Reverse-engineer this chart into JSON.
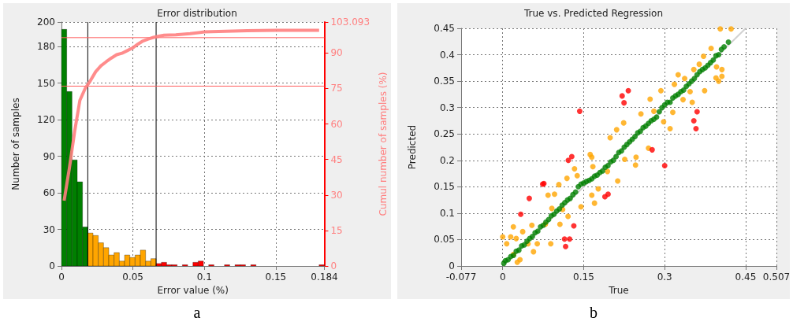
{
  "chart_data": [
    {
      "type": "histogram",
      "title": "Error distribution",
      "xlabel": "Error value (%)",
      "ylabel": "Number of samples",
      "y2label": "Cumul number of samples (%)",
      "bins": [
        0,
        0.00368,
        0.00736,
        0.01104,
        0.01472,
        0.0184,
        0.02208,
        0.02576,
        0.02944,
        0.03312,
        0.0368,
        0.04048,
        0.04416,
        0.04784,
        0.05152,
        0.0552,
        0.05888,
        0.06256,
        0.06624,
        0.06992,
        0.0736,
        0.07728,
        0.08096,
        0.08464,
        0.08832,
        0.092,
        0.09568,
        0.09936,
        0.10304,
        0.10672,
        0.1104,
        0.11408,
        0.11776,
        0.12144,
        0.12512,
        0.1288,
        0.13248,
        0.13616,
        0.13984,
        0.14352,
        0.1472,
        0.15088,
        0.15456,
        0.15824,
        0.16192,
        0.1656,
        0.16928,
        0.17296,
        0.17664,
        0.18032,
        0.184
      ],
      "values": [
        194,
        143,
        87,
        69,
        32,
        27,
        25,
        19,
        15,
        9,
        11,
        4,
        9,
        7,
        9,
        13,
        4,
        6,
        2,
        3,
        1,
        1,
        0,
        1,
        0,
        3,
        4,
        0,
        1,
        0,
        0,
        1,
        0,
        1,
        1,
        0,
        1,
        0,
        0,
        0,
        0,
        0,
        0,
        0,
        0,
        0,
        0,
        0,
        0,
        1
      ],
      "colors": [
        "#007f00",
        "#007f00",
        "#007f00",
        "#007f00",
        "#007f00",
        "#ffa500",
        "#ffa500",
        "#ffa500",
        "#ffa500",
        "#ffa500",
        "#ffa500",
        "#ffa500",
        "#ffa500",
        "#ffa500",
        "#ffa500",
        "#ffa500",
        "#ffa500",
        "#ffa500",
        "#ff0000",
        "#ff0000",
        "#ff0000",
        "#ff0000",
        "#ff0000",
        "#ff0000",
        "#ff0000",
        "#ff0000",
        "#ff0000",
        "#ff0000",
        "#ff0000",
        "#ff0000",
        "#ff0000",
        "#ff0000",
        "#ff0000",
        "#ff0000",
        "#ff0000",
        "#ff0000",
        "#ff0000",
        "#ff0000",
        "#ff0000",
        "#ff0000",
        "#ff0000",
        "#ff0000",
        "#ff0000",
        "#ff0000",
        "#ff0000",
        "#ff0000",
        "#ff0000",
        "#ff0000",
        "#ff0000",
        "#ff0000"
      ],
      "series": [
        {
          "type": "line",
          "axis": "y2",
          "color": "#ff8080",
          "x": [
            0.00184,
            0.00552,
            0.0092,
            0.01288,
            0.01656,
            0.02024,
            0.02392,
            0.0276,
            0.03128,
            0.03496,
            0.03864,
            0.04232,
            0.046,
            0.04968,
            0.05336,
            0.05704,
            0.06072,
            0.0644,
            0.06808,
            0.07176,
            0.07544,
            0.08,
            0.09,
            0.1,
            0.11,
            0.13,
            0.15,
            0.18032
          ],
          "values": [
            27.6,
            41.3,
            56.8,
            70.0,
            75.0,
            78.3,
            82.1,
            84.6,
            86.3,
            87.9,
            89.3,
            89.9,
            91.0,
            92.1,
            93.7,
            95.1,
            95.9,
            96.6,
            97.1,
            97.5,
            97.6,
            97.7,
            98.2,
            98.9,
            99.1,
            99.4,
            99.6,
            99.6
          ]
        }
      ],
      "xlim": [
        0,
        0.184
      ],
      "xticks": [
        0,
        0.05,
        0.1,
        0.15,
        0.184
      ],
      "ylim": [
        0,
        200
      ],
      "yticks": [
        0,
        30,
        60,
        90,
        120,
        150,
        180,
        200
      ],
      "y2lim": [
        0,
        103.093
      ],
      "y2ticks": [
        0,
        15,
        30,
        45,
        60,
        75,
        90,
        103.093
      ],
      "ref_lines": [
        {
          "axis": "x",
          "value": 0.0184,
          "color": "#000000"
        },
        {
          "axis": "x",
          "value": 0.06624,
          "color": "#000000"
        },
        {
          "axis": "y2",
          "value": 76,
          "color": "#ff6060"
        },
        {
          "axis": "y2",
          "value": 96.5,
          "color": "#ff6060"
        }
      ],
      "grid": true,
      "annotations": [
        "a"
      ]
    },
    {
      "type": "scatter",
      "title": "True vs. Predicted Regression",
      "xlabel": "True",
      "ylabel": "Predicted",
      "series": [
        {
          "color": "#ffa500",
          "x": [
            0.0,
            0.0074,
            0.0148,
            0.02,
            0.027,
            0.032,
            0.0197,
            0.025,
            0.037,
            0.047,
            0.054,
            0.057,
            0.064,
            0.079,
            0.084,
            0.089,
            0.091,
            0.096,
            0.104,
            0.106,
            0.111,
            0.119,
            0.121,
            0.133,
            0.138,
            0.145,
            0.162,
            0.165,
            0.165,
            0.167,
            0.177,
            0.17,
            0.194,
            0.213,
            0.199,
            0.211,
            0.224,
            0.226,
            0.246,
            0.247,
            0.256,
            0.27,
            0.273,
            0.28,
            0.293,
            0.298,
            0.31,
            0.318,
            0.315,
            0.325,
            0.337,
            0.334,
            0.347,
            0.351,
            0.374,
            0.354,
            0.364,
            0.372,
            0.386,
            0.396,
            0.406,
            0.395,
            0.406,
            0.4,
            0.403,
            0.423
          ],
          "values": [
            0.055,
            0.042,
            0.055,
            0.022,
            0.007,
            0.012,
            0.074,
            0.052,
            0.065,
            0.042,
            0.077,
            0.027,
            0.042,
            0.079,
            0.134,
            0.042,
            0.109,
            0.136,
            0.154,
            0.079,
            0.107,
            0.166,
            0.094,
            0.184,
            0.171,
            0.112,
            0.211,
            0.134,
            0.206,
            0.188,
            0.146,
            0.119,
            0.179,
            0.161,
            0.243,
            0.258,
            0.271,
            0.202,
            0.191,
            0.206,
            0.288,
            0.223,
            0.316,
            0.293,
            0.332,
            0.273,
            0.26,
            0.344,
            0.291,
            0.362,
            0.355,
            0.315,
            0.33,
            0.31,
            0.332,
            0.372,
            0.382,
            0.397,
            0.412,
            0.377,
            0.372,
            0.356,
            0.359,
            0.35,
            0.449,
            0.449
          ]
        },
        {
          "color": "#008000",
          "x": [
            0.002,
            0.005,
            0.01,
            0.015,
            0.02,
            0.025,
            0.03,
            0.035,
            0.04,
            0.045,
            0.05,
            0.055,
            0.06,
            0.065,
            0.07,
            0.075,
            0.08,
            0.085,
            0.09,
            0.095,
            0.1,
            0.105,
            0.11,
            0.115,
            0.12,
            0.125,
            0.13,
            0.135,
            0.14,
            0.145,
            0.15,
            0.155,
            0.16,
            0.165,
            0.17,
            0.175,
            0.18,
            0.185,
            0.19,
            0.195,
            0.2,
            0.205,
            0.21,
            0.215,
            0.22,
            0.225,
            0.23,
            0.235,
            0.24,
            0.245,
            0.25,
            0.255,
            0.26,
            0.265,
            0.27,
            0.275,
            0.28,
            0.285,
            0.29,
            0.295,
            0.3,
            0.305,
            0.31,
            0.315,
            0.32,
            0.325,
            0.33,
            0.335,
            0.34,
            0.345,
            0.35,
            0.355,
            0.36,
            0.365,
            0.37,
            0.375,
            0.38,
            0.385,
            0.39,
            0.395,
            0.4,
            0.405,
            0.41,
            0.418
          ],
          "values": [
            0.005,
            0.01,
            0.012,
            0.018,
            0.02,
            0.028,
            0.03,
            0.038,
            0.04,
            0.047,
            0.052,
            0.056,
            0.063,
            0.066,
            0.074,
            0.077,
            0.083,
            0.088,
            0.095,
            0.098,
            0.104,
            0.108,
            0.115,
            0.12,
            0.125,
            0.128,
            0.135,
            0.14,
            0.15,
            0.155,
            0.157,
            0.16,
            0.162,
            0.165,
            0.17,
            0.172,
            0.177,
            0.18,
            0.187,
            0.19,
            0.197,
            0.2,
            0.207,
            0.215,
            0.218,
            0.225,
            0.23,
            0.235,
            0.24,
            0.245,
            0.252,
            0.255,
            0.262,
            0.265,
            0.27,
            0.275,
            0.278,
            0.282,
            0.292,
            0.3,
            0.305,
            0.31,
            0.31,
            0.318,
            0.322,
            0.325,
            0.33,
            0.333,
            0.34,
            0.345,
            0.35,
            0.355,
            0.362,
            0.368,
            0.372,
            0.375,
            0.38,
            0.385,
            0.39,
            0.398,
            0.4,
            0.41,
            0.415,
            0.424
          ]
        },
        {
          "color": "#ff0000",
          "x": [
            0.1426,
            0.1215,
            0.1279,
            0.0763,
            0.074,
            0.0492,
            0.0334,
            0.1317,
            0.1145,
            0.1239,
            0.1165,
            0.2212,
            0.2326,
            0.2247,
            0.36,
            0.354,
            0.358,
            0.2768,
            0.3,
            0.1893,
            0.1952
          ],
          "values": [
            0.293,
            0.2,
            0.207,
            0.156,
            0.155,
            0.128,
            0.098,
            0.076,
            0.051,
            0.051,
            0.037,
            0.322,
            0.332,
            0.309,
            0.292,
            0.275,
            0.26,
            0.22,
            0.19,
            0.131,
            0.136
          ]
        },
        {
          "type": "line",
          "marker": "none",
          "color": "#cccccc",
          "x": [
            0,
            0.45
          ],
          "values": [
            0,
            0.45
          ]
        }
      ],
      "xlim": [
        -0.077,
        0.507
      ],
      "xticks": [
        -0.077,
        0,
        0.15,
        0.3,
        0.45,
        0.507
      ],
      "ylim": [
        0,
        0.45
      ],
      "yticks": [
        0,
        0.05,
        0.1,
        0.15,
        0.2,
        0.25,
        0.3,
        0.35,
        0.4,
        0.45
      ],
      "marker": "circle",
      "grid": true,
      "annotations": [
        "b"
      ]
    }
  ]
}
